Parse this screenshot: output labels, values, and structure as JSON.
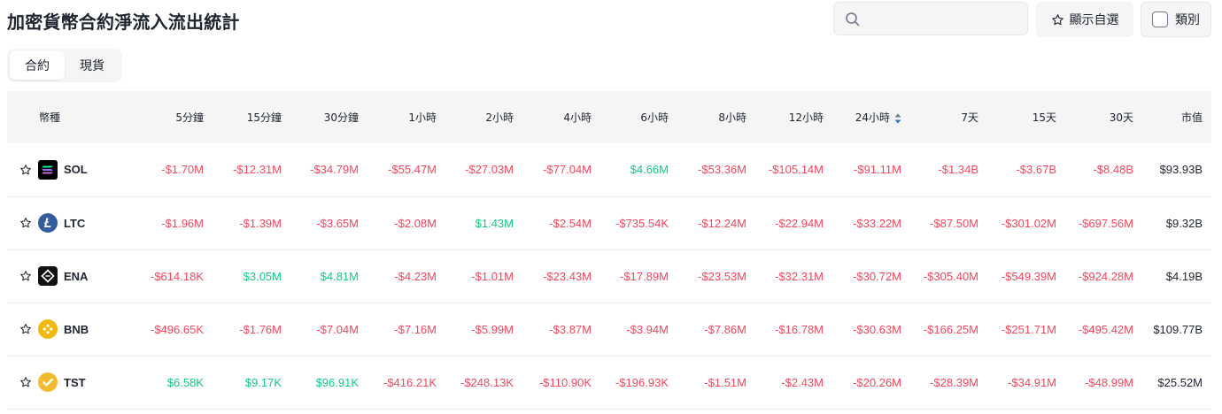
{
  "page": {
    "title": "加密貨幣合約淨流入流出統計"
  },
  "search": {
    "placeholder": ""
  },
  "toolbar": {
    "favorites_label": "顯示自選",
    "category_label": "類別"
  },
  "tabs": [
    {
      "label": "合約",
      "active": true
    },
    {
      "label": "現貨",
      "active": false
    }
  ],
  "colors": {
    "negative": "#f6465d",
    "positive": "#0ecb81"
  },
  "table": {
    "headers": {
      "coin": "幣種",
      "m5": "5分鐘",
      "m15": "15分鐘",
      "m30": "30分鐘",
      "h1": "1小時",
      "h2": "2小時",
      "h4": "4小時",
      "h6": "6小時",
      "h8": "8小時",
      "h12": "12小時",
      "h24": "24小時",
      "d7": "7天",
      "d15": "15天",
      "d30": "30天",
      "mcap": "市值"
    },
    "rows": [
      {
        "symbol": "SOL",
        "logo_icon": "sol-logo-icon",
        "cells": [
          "-$1.70M",
          "-$12.31M",
          "-$34.79M",
          "-$55.47M",
          "-$27.03M",
          "-$77.04M",
          "$4.66M",
          "-$53.36M",
          "-$105.14M",
          "-$91.11M",
          "-$1.34B",
          "-$3.67B",
          "-$8.48B"
        ],
        "mcap": "$93.93B"
      },
      {
        "symbol": "LTC",
        "logo_icon": "ltc-logo-icon",
        "cells": [
          "-$1.96M",
          "-$1.39M",
          "-$3.65M",
          "-$2.08M",
          "$1.43M",
          "-$2.54M",
          "-$735.54K",
          "-$12.24M",
          "-$22.94M",
          "-$33.22M",
          "-$87.50M",
          "-$301.02M",
          "-$697.56M"
        ],
        "mcap": "$9.32B"
      },
      {
        "symbol": "ENA",
        "logo_icon": "ena-logo-icon",
        "cells": [
          "-$614.18K",
          "$3.05M",
          "$4.81M",
          "-$4.23M",
          "-$1.01M",
          "-$23.43M",
          "-$17.89M",
          "-$23.53M",
          "-$32.31M",
          "-$30.72M",
          "-$305.40M",
          "-$549.39M",
          "-$924.28M"
        ],
        "mcap": "$4.19B"
      },
      {
        "symbol": "BNB",
        "logo_icon": "bnb-logo-icon",
        "cells": [
          "-$496.65K",
          "-$1.76M",
          "-$7.04M",
          "-$7.16M",
          "-$5.99M",
          "-$3.87M",
          "-$3.94M",
          "-$7.86M",
          "-$16.78M",
          "-$30.63M",
          "-$166.25M",
          "-$251.71M",
          "-$495.42M"
        ],
        "mcap": "$109.77B"
      },
      {
        "symbol": "TST",
        "logo_icon": "tst-logo-icon",
        "cells": [
          "$6.58K",
          "$9.17K",
          "$96.91K",
          "-$416.21K",
          "-$248.13K",
          "-$110.90K",
          "-$196.93K",
          "-$1.51M",
          "-$2.43M",
          "-$20.26M",
          "-$28.39M",
          "-$34.91M",
          "-$48.99M"
        ],
        "mcap": "$25.52M"
      }
    ]
  }
}
